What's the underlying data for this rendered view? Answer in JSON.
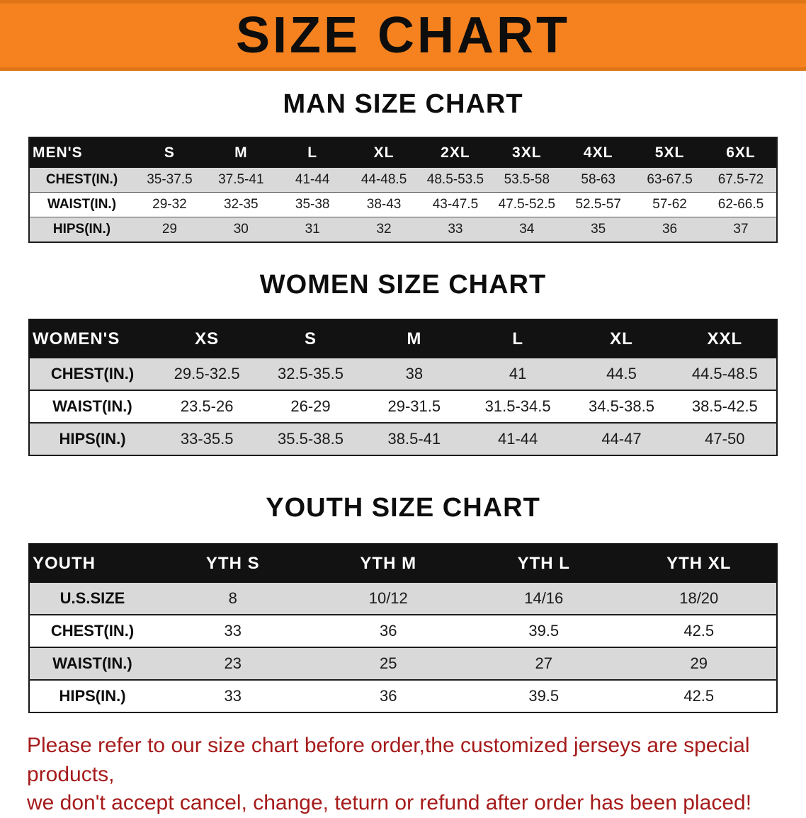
{
  "banner": {
    "title": "SIZE CHART"
  },
  "colors": {
    "banner_orange": "#f5821f",
    "header_black": "#121212",
    "stripe_gray": "#d9d9d9",
    "footer_red": "#a61b1b"
  },
  "sections": [
    {
      "heading": "MAN SIZE CHART",
      "header": [
        "MEN'S",
        "S",
        "M",
        "L",
        "XL",
        "2XL",
        "3XL",
        "4XL",
        "5XL",
        "6XL"
      ],
      "rows": [
        [
          "CHEST(IN.)",
          "35-37.5",
          "37.5-41",
          "41-44",
          "44-48.5",
          "48.5-53.5",
          "53.5-58",
          "58-63",
          "63-67.5",
          "67.5-72"
        ],
        [
          "WAIST(IN.)",
          "29-32",
          "32-35",
          "35-38",
          "38-43",
          "43-47.5",
          "47.5-52.5",
          "52.5-57",
          "57-62",
          "62-66.5"
        ],
        [
          "HIPS(IN.)",
          "29",
          "30",
          "31",
          "32",
          "33",
          "34",
          "35",
          "36",
          "37"
        ]
      ]
    },
    {
      "heading": "WOMEN SIZE CHART",
      "header": [
        "WOMEN'S",
        "XS",
        "S",
        "M",
        "L",
        "XL",
        "XXL"
      ],
      "rows": [
        [
          "CHEST(IN.)",
          "29.5-32.5",
          "32.5-35.5",
          "38",
          "41",
          "44.5",
          "44.5-48.5"
        ],
        [
          "WAIST(IN.)",
          "23.5-26",
          "26-29",
          "29-31.5",
          "31.5-34.5",
          "34.5-38.5",
          "38.5-42.5"
        ],
        [
          "HIPS(IN.)",
          "33-35.5",
          "35.5-38.5",
          "38.5-41",
          "41-44",
          "44-47",
          "47-50"
        ]
      ]
    },
    {
      "heading": "YOUTH SIZE CHART",
      "header": [
        "YOUTH",
        "YTH S",
        "YTH M",
        "YTH L",
        "YTH XL"
      ],
      "rows": [
        [
          "U.S.SIZE",
          "8",
          "10/12",
          "14/16",
          "18/20"
        ],
        [
          "CHEST(IN.)",
          "33",
          "36",
          "39.5",
          "42.5"
        ],
        [
          "WAIST(IN.)",
          "23",
          "25",
          "27",
          "29"
        ],
        [
          "HIPS(IN.)",
          "33",
          "36",
          "39.5",
          "42.5"
        ]
      ]
    }
  ],
  "footer": {
    "line1": "Please refer to our size chart before order,the customized jerseys are special products,",
    "line2": "we don't accept cancel, change, teturn or refund after order has been placed!"
  }
}
